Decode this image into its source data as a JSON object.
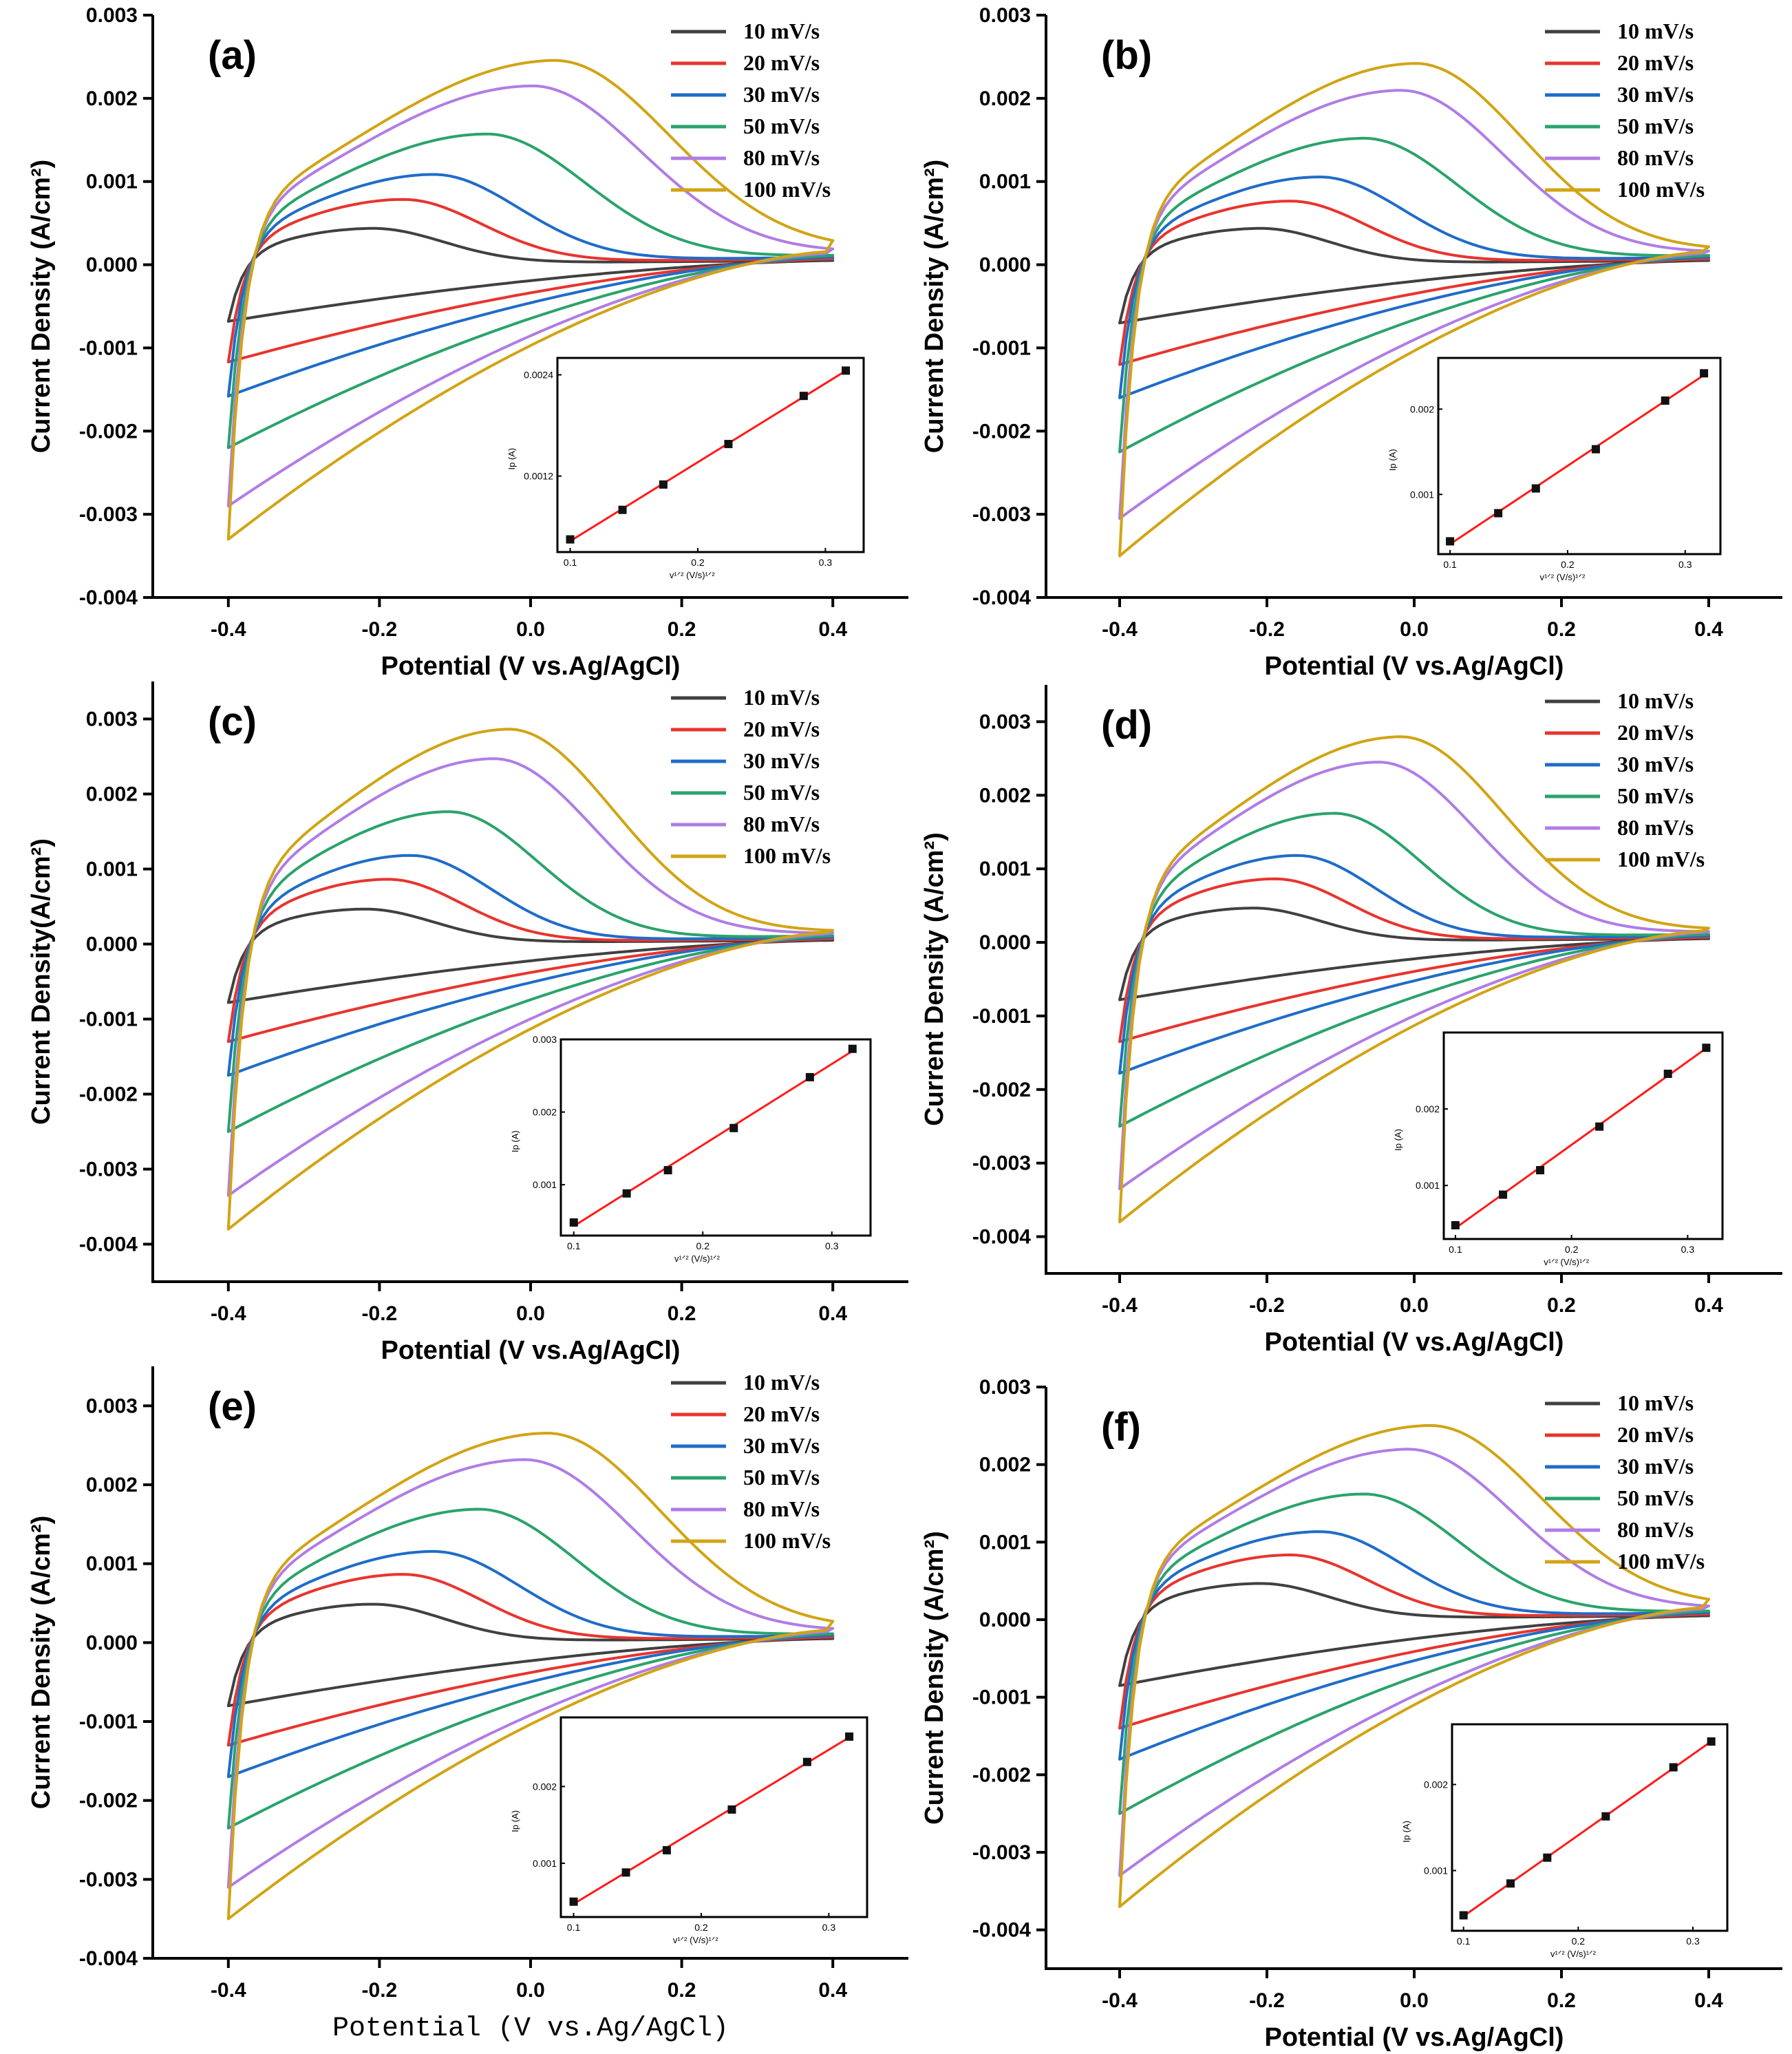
{
  "chart_data": [
    {
      "type": "line",
      "panel": "(a)",
      "xlabel": "Potential (V vs.Ag/AgCl)",
      "ylabel": "Current Density (A/cm²)",
      "xlim": [
        -0.5,
        0.5
      ],
      "ylim": [
        -0.004,
        0.003
      ],
      "xticks": [
        "-0.4",
        "-0.2",
        "0.0",
        "0.2",
        "0.4"
      ],
      "yticks": [
        "0.003",
        "0.002",
        "0.001",
        "0.000",
        "-0.001",
        "-0.002",
        "-0.003",
        "-0.004"
      ],
      "series": [
        {
          "name": "10 mV/s",
          "color": "#404040",
          "peak_potential": -0.21,
          "peak_current": 0.00045,
          "vertex_cathodic": -0.00068,
          "vertex_anodic": 5e-05
        },
        {
          "name": "20 mV/s",
          "color": "#e8342e",
          "peak_potential": -0.17,
          "peak_current": 0.0008,
          "vertex_cathodic": -0.00117,
          "vertex_anodic": 7e-05
        },
        {
          "name": "30 mV/s",
          "color": "#1f6cc9",
          "peak_potential": -0.13,
          "peak_current": 0.0011,
          "vertex_cathodic": -0.00158,
          "vertex_anodic": 9e-05
        },
        {
          "name": "50 mV/s",
          "color": "#2aa36b",
          "peak_potential": -0.06,
          "peak_current": 0.00158,
          "vertex_cathodic": -0.0022,
          "vertex_anodic": 0.00011
        },
        {
          "name": "80 mV/s",
          "color": "#b07ce6",
          "peak_potential": 0.0,
          "peak_current": 0.00215,
          "vertex_cathodic": -0.0029,
          "vertex_anodic": 0.00014
        },
        {
          "name": "100 mV/s",
          "color": "#d1a414",
          "peak_potential": 0.03,
          "peak_current": 0.00245,
          "vertex_cathodic": -0.0033,
          "vertex_anodic": 0.00016
        }
      ],
      "inset": {
        "xlabel": "v¹ᐟ² (V/s)¹ᐟ²",
        "ylabel": "Ip (A)",
        "xlim": [
          0.09,
          0.33
        ],
        "ylim": [
          0.0003,
          0.0026
        ],
        "xticks": [
          "0.1",
          "0.2",
          "0.3"
        ],
        "yticks": [
          "0.0012",
          "0.0024"
        ],
        "ytick_values": [
          0.0012,
          0.0024
        ],
        "x": [
          0.1,
          0.141,
          0.173,
          0.224,
          0.283,
          0.316
        ],
        "y": [
          0.00045,
          0.0008,
          0.0011,
          0.00158,
          0.00215,
          0.00245
        ]
      }
    },
    {
      "type": "line",
      "panel": "(b)",
      "xlabel": "Potential (V vs.Ag/AgCl)",
      "ylabel": "Current Density (A/cm²)",
      "xlim": [
        -0.5,
        0.5
      ],
      "ylim": [
        -0.004,
        0.003
      ],
      "xticks": [
        "-0.4",
        "-0.2",
        "0.0",
        "0.2",
        "0.4"
      ],
      "yticks": [
        "0.003",
        "0.002",
        "0.001",
        "0.000",
        "-0.001",
        "-0.002",
        "-0.003",
        "-0.004"
      ],
      "series": [
        {
          "name": "10 mV/s",
          "color": "#404040",
          "peak_potential": -0.21,
          "peak_current": 0.00045,
          "vertex_cathodic": -0.0007,
          "vertex_anodic": 5e-05
        },
        {
          "name": "20 mV/s",
          "color": "#e8342e",
          "peak_potential": -0.17,
          "peak_current": 0.00078,
          "vertex_cathodic": -0.0012,
          "vertex_anodic": 7e-05
        },
        {
          "name": "30 mV/s",
          "color": "#1f6cc9",
          "peak_potential": -0.13,
          "peak_current": 0.00107,
          "vertex_cathodic": -0.0016,
          "vertex_anodic": 9e-05
        },
        {
          "name": "50 mV/s",
          "color": "#2aa36b",
          "peak_potential": -0.07,
          "peak_current": 0.00153,
          "vertex_cathodic": -0.00225,
          "vertex_anodic": 0.00011
        },
        {
          "name": "80 mV/s",
          "color": "#b07ce6",
          "peak_potential": -0.02,
          "peak_current": 0.0021,
          "vertex_cathodic": -0.00305,
          "vertex_anodic": 0.00014
        },
        {
          "name": "100 mV/s",
          "color": "#d1a414",
          "peak_potential": 0.0,
          "peak_current": 0.00242,
          "vertex_cathodic": -0.0035,
          "vertex_anodic": 0.00016
        }
      ],
      "inset": {
        "xlabel": "v¹ᐟ² (V/s)¹ᐟ²",
        "ylabel": "Ip (A)",
        "xlim": [
          0.09,
          0.33
        ],
        "ylim": [
          0.0003,
          0.0026
        ],
        "xticks": [
          "0.1",
          "0.2",
          "0.3"
        ],
        "yticks": [
          "0.001",
          "0.002"
        ],
        "ytick_values": [
          0.001,
          0.002
        ],
        "x": [
          0.1,
          0.141,
          0.173,
          0.224,
          0.283,
          0.316
        ],
        "y": [
          0.00045,
          0.00078,
          0.00107,
          0.00153,
          0.0021,
          0.00242
        ]
      }
    },
    {
      "type": "line",
      "panel": "(c)",
      "xlabel": "Potential (V vs.Ag/AgCl)",
      "ylabel": "Current Density(A/cm²)",
      "xlim": [
        -0.5,
        0.5
      ],
      "ylim": [
        -0.0045,
        0.0035
      ],
      "xticks": [
        "-0.4",
        "-0.2",
        "0.0",
        "0.2",
        "0.4"
      ],
      "yticks": [
        "0.003",
        "0.002",
        "0.001",
        "0.000",
        "-0.001",
        "-0.002",
        "-0.003",
        "-0.004"
      ],
      "series": [
        {
          "name": "10 mV/s",
          "color": "#404040",
          "peak_potential": -0.22,
          "peak_current": 0.00048,
          "vertex_cathodic": -0.00078,
          "vertex_anodic": 5e-05
        },
        {
          "name": "20 mV/s",
          "color": "#e8342e",
          "peak_potential": -0.19,
          "peak_current": 0.00088,
          "vertex_cathodic": -0.0013,
          "vertex_anodic": 7e-05
        },
        {
          "name": "30 mV/s",
          "color": "#1f6cc9",
          "peak_potential": -0.16,
          "peak_current": 0.0012,
          "vertex_cathodic": -0.00175,
          "vertex_anodic": 9e-05
        },
        {
          "name": "50 mV/s",
          "color": "#2aa36b",
          "peak_potential": -0.11,
          "peak_current": 0.00178,
          "vertex_cathodic": -0.0025,
          "vertex_anodic": 0.00011
        },
        {
          "name": "80 mV/s",
          "color": "#b07ce6",
          "peak_potential": -0.05,
          "peak_current": 0.00248,
          "vertex_cathodic": -0.00335,
          "vertex_anodic": 0.00014
        },
        {
          "name": "100 mV/s",
          "color": "#d1a414",
          "peak_potential": -0.03,
          "peak_current": 0.00287,
          "vertex_cathodic": -0.0038,
          "vertex_anodic": 0.00016
        }
      ],
      "inset": {
        "xlabel": "v¹ᐟ² (V/s)¹ᐟ²",
        "ylabel": "Ip (A)",
        "xlim": [
          0.09,
          0.33
        ],
        "ylim": [
          0.0003,
          0.003
        ],
        "xticks": [
          "0.1",
          "0.2",
          "0.3"
        ],
        "yticks": [
          "0.001",
          "0.002",
          "0.003"
        ],
        "ytick_values": [
          0.001,
          0.002,
          0.003
        ],
        "x": [
          0.1,
          0.141,
          0.173,
          0.224,
          0.283,
          0.316
        ],
        "y": [
          0.00048,
          0.00088,
          0.0012,
          0.00178,
          0.00248,
          0.00287
        ]
      }
    },
    {
      "type": "line",
      "panel": "(d)",
      "xlabel": "Potential (V vs.Ag/AgCl)",
      "ylabel": "Current Density (A/cm²)",
      "xlim": [
        -0.5,
        0.5
      ],
      "ylim": [
        -0.0045,
        0.0035
      ],
      "xticks": [
        "-0.4",
        "-0.2",
        "0.0",
        "0.2",
        "0.4"
      ],
      "yticks": [
        "0.003",
        "0.002",
        "0.001",
        "0.000",
        "-0.001",
        "-0.002",
        "-0.003",
        "-0.004"
      ],
      "series": [
        {
          "name": "10 mV/s",
          "color": "#404040",
          "peak_potential": -0.22,
          "peak_current": 0.00048,
          "vertex_cathodic": -0.00078,
          "vertex_anodic": 5e-05
        },
        {
          "name": "20 mV/s",
          "color": "#e8342e",
          "peak_potential": -0.19,
          "peak_current": 0.00088,
          "vertex_cathodic": -0.00135,
          "vertex_anodic": 7e-05
        },
        {
          "name": "30 mV/s",
          "color": "#1f6cc9",
          "peak_potential": -0.16,
          "peak_current": 0.0012,
          "vertex_cathodic": -0.00178,
          "vertex_anodic": 9e-05
        },
        {
          "name": "50 mV/s",
          "color": "#2aa36b",
          "peak_potential": -0.11,
          "peak_current": 0.00177,
          "vertex_cathodic": -0.0025,
          "vertex_anodic": 0.00011
        },
        {
          "name": "80 mV/s",
          "color": "#b07ce6",
          "peak_potential": -0.05,
          "peak_current": 0.00246,
          "vertex_cathodic": -0.00335,
          "vertex_anodic": 0.00014
        },
        {
          "name": "100 mV/s",
          "color": "#d1a414",
          "peak_potential": -0.02,
          "peak_current": 0.0028,
          "vertex_cathodic": -0.0038,
          "vertex_anodic": 0.00016
        }
      ],
      "inset": {
        "xlabel": "v¹ᐟ² (V/s)¹ᐟ²",
        "ylabel": "Ip (A)",
        "xlim": [
          0.09,
          0.33
        ],
        "ylim": [
          0.0003,
          0.003
        ],
        "xticks": [
          "0.1",
          "0.2",
          "0.3"
        ],
        "yticks": [
          "0.001",
          "0.002"
        ],
        "ytick_values": [
          0.001,
          0.002
        ],
        "x": [
          0.1,
          0.141,
          0.173,
          0.224,
          0.283,
          0.316
        ],
        "y": [
          0.00048,
          0.00088,
          0.0012,
          0.00177,
          0.00246,
          0.0028
        ]
      }
    },
    {
      "type": "line",
      "panel": "(e)",
      "xlabel": "Potential (V vs.Ag/AgCl)",
      "ylabel": "Current Density (A/cm²)",
      "xlim": [
        -0.5,
        0.5
      ],
      "ylim": [
        -0.004,
        0.0035
      ],
      "xticks": [
        "-0.4",
        "-0.2",
        "0.0",
        "0.2",
        "0.4"
      ],
      "yticks": [
        "0.003",
        "0.002",
        "0.001",
        "0.000",
        "-0.001",
        "-0.002",
        "-0.003",
        "-0.004"
      ],
      "series": [
        {
          "name": "10 mV/s",
          "color": "#404040",
          "peak_potential": -0.21,
          "peak_current": 0.0005,
          "vertex_cathodic": -0.0008,
          "vertex_anodic": 5e-05
        },
        {
          "name": "20 mV/s",
          "color": "#e8342e",
          "peak_potential": -0.17,
          "peak_current": 0.00088,
          "vertex_cathodic": -0.0013,
          "vertex_anodic": 7e-05
        },
        {
          "name": "30 mV/s",
          "color": "#1f6cc9",
          "peak_potential": -0.13,
          "peak_current": 0.00117,
          "vertex_cathodic": -0.0017,
          "vertex_anodic": 9e-05
        },
        {
          "name": "50 mV/s",
          "color": "#2aa36b",
          "peak_potential": -0.07,
          "peak_current": 0.0017,
          "vertex_cathodic": -0.00235,
          "vertex_anodic": 0.00011
        },
        {
          "name": "80 mV/s",
          "color": "#b07ce6",
          "peak_potential": -0.01,
          "peak_current": 0.00232,
          "vertex_cathodic": -0.0031,
          "vertex_anodic": 0.00014
        },
        {
          "name": "100 mV/s",
          "color": "#d1a414",
          "peak_potential": 0.02,
          "peak_current": 0.00265,
          "vertex_cathodic": -0.0035,
          "vertex_anodic": 0.00016
        }
      ],
      "inset": {
        "xlabel": "v¹ᐟ² (V/s)¹ᐟ²",
        "ylabel": "Ip (A)",
        "xlim": [
          0.09,
          0.33
        ],
        "ylim": [
          0.0003,
          0.0029
        ],
        "xticks": [
          "0.1",
          "0.2",
          "0.3"
        ],
        "yticks": [
          "0.001",
          "0.002"
        ],
        "ytick_values": [
          0.001,
          0.002
        ],
        "x": [
          0.1,
          0.141,
          0.173,
          0.224,
          0.283,
          0.316
        ],
        "y": [
          0.0005,
          0.00088,
          0.00117,
          0.0017,
          0.00232,
          0.00265
        ]
      }
    },
    {
      "type": "line",
      "panel": "(f)",
      "xlabel": "Potential (V vs.Ag/AgCl)",
      "ylabel": "Current Density (A/cm²)",
      "xlim": [
        -0.5,
        0.5
      ],
      "ylim": [
        -0.0045,
        0.003
      ],
      "xticks": [
        "-0.4",
        "-0.2",
        "0.0",
        "0.2",
        "0.4"
      ],
      "yticks": [
        "0.003",
        "0.002",
        "0.001",
        "0.000",
        "-0.001",
        "-0.002",
        "-0.003",
        "-0.004"
      ],
      "series": [
        {
          "name": "10 mV/s",
          "color": "#404040",
          "peak_potential": -0.21,
          "peak_current": 0.00048,
          "vertex_cathodic": -0.00085,
          "vertex_anodic": 5e-05
        },
        {
          "name": "20 mV/s",
          "color": "#e8342e",
          "peak_potential": -0.17,
          "peak_current": 0.00085,
          "vertex_cathodic": -0.0014,
          "vertex_anodic": 7e-05
        },
        {
          "name": "30 mV/s",
          "color": "#1f6cc9",
          "peak_potential": -0.13,
          "peak_current": 0.00115,
          "vertex_cathodic": -0.0018,
          "vertex_anodic": 9e-05
        },
        {
          "name": "50 mV/s",
          "color": "#2aa36b",
          "peak_potential": -0.07,
          "peak_current": 0.00163,
          "vertex_cathodic": -0.0025,
          "vertex_anodic": 0.00011
        },
        {
          "name": "80 mV/s",
          "color": "#b07ce6",
          "peak_potential": -0.01,
          "peak_current": 0.0022,
          "vertex_cathodic": -0.0033,
          "vertex_anodic": 0.00014
        },
        {
          "name": "100 mV/s",
          "color": "#d1a414",
          "peak_potential": 0.02,
          "peak_current": 0.0025,
          "vertex_cathodic": -0.0037,
          "vertex_anodic": 0.00016
        }
      ],
      "inset": {
        "xlabel": "v¹ᐟ² (V/s)¹ᐟ²",
        "ylabel": "Ip (A)",
        "xlim": [
          0.09,
          0.33
        ],
        "ylim": [
          0.0003,
          0.0027
        ],
        "xticks": [
          "0.1",
          "0.2",
          "0.3"
        ],
        "yticks": [
          "0.001",
          "0.002"
        ],
        "ytick_values": [
          0.001,
          0.002
        ],
        "x": [
          0.1,
          0.141,
          0.173,
          0.224,
          0.283,
          0.316
        ],
        "y": [
          0.00048,
          0.00085,
          0.00115,
          0.00163,
          0.0022,
          0.0025
        ]
      }
    }
  ]
}
